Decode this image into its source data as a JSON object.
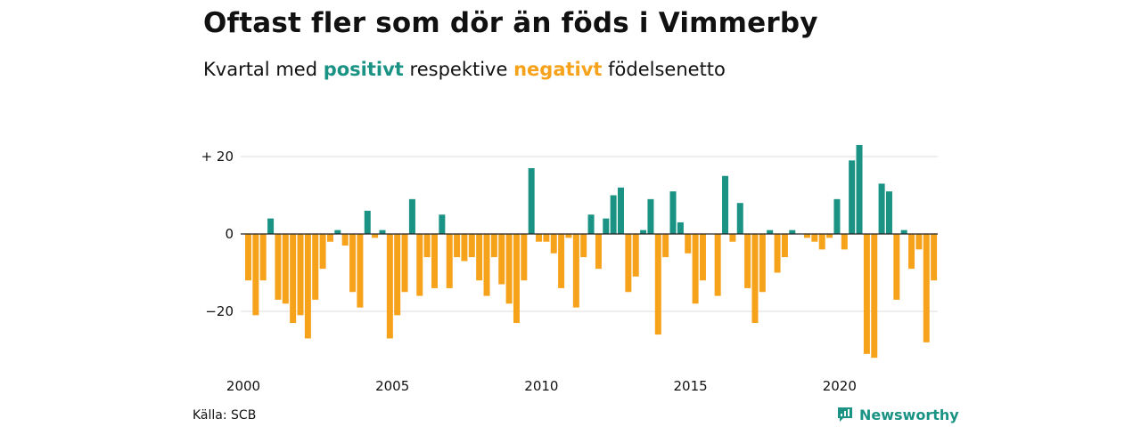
{
  "header": {
    "title": "Oftast fler som dör än föds i Vimmerby",
    "subtitle_prefix": "Kvartal med",
    "subtitle_positive": "positivt",
    "subtitle_middle": "respektive",
    "subtitle_negative": "negativt",
    "subtitle_suffix": "födelsenetto"
  },
  "footer": {
    "source": "Källa: SCB",
    "brand": "Newsworthy",
    "brand_icon": "newsworthy-logo-icon"
  },
  "colors": {
    "positive": "#1a9384",
    "negative": "#f7a21b",
    "grid": "#dddddd",
    "baseline": "#222222"
  },
  "chart_data": {
    "type": "bar",
    "unit": "quarter",
    "x_start": "2000 Q1",
    "x_ticks": [
      "2000",
      "2005",
      "2010",
      "2015",
      "2020"
    ],
    "y_ticks": [
      {
        "value": 20,
        "label": "+ 20"
      },
      {
        "value": 0,
        "label": "0"
      },
      {
        "value": -20,
        "label": "−20"
      }
    ],
    "ylim": [
      -33,
      24
    ],
    "grid": true,
    "legend": "none",
    "series": [
      {
        "values": [
          -12,
          -21,
          -12,
          4,
          -17,
          -18,
          -23,
          -21,
          -27,
          -17,
          -9,
          -2,
          1,
          -3,
          -15,
          -19,
          6,
          -1,
          1,
          -27,
          -21,
          -15,
          9,
          -16,
          -6,
          -14,
          5,
          -14,
          -6,
          -7,
          -6,
          -12,
          -16,
          -6,
          -13,
          -18,
          -23,
          -12,
          17,
          -2,
          -2,
          -5,
          -14,
          -1,
          -19,
          -6,
          5,
          -9,
          4,
          10,
          12,
          -15,
          -11,
          1,
          9,
          -26,
          -6,
          11,
          3,
          -5,
          -18,
          -12,
          0,
          -16,
          15,
          -2,
          8,
          -14,
          -23,
          -15,
          1,
          -10,
          -6,
          1,
          0,
          -1,
          -2,
          -4,
          -1,
          9,
          -4,
          19,
          23,
          -31,
          -32,
          13,
          11,
          -17,
          1,
          -9,
          -4,
          -28,
          -12
        ]
      }
    ]
  }
}
